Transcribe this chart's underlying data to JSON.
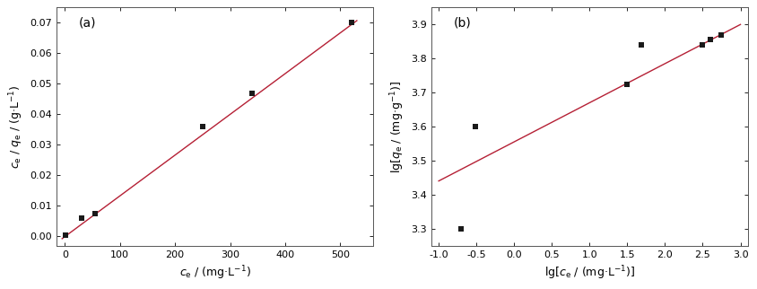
{
  "langmuir": {
    "scatter_x": [
      1.0,
      30.0,
      55.0,
      250.0,
      340.0,
      520.0
    ],
    "scatter_y": [
      0.0005,
      0.006,
      0.0075,
      0.036,
      0.047,
      0.07
    ],
    "fit_x": [
      -5,
      530
    ],
    "fit_slope": 0.0001335,
    "fit_intercept": -5e-05,
    "xlabel": "$c_{\\rm e}$ / (mg·L$^{-1}$)",
    "ylabel": "$c_{\\rm e}$ / $q_{\\rm e}$ / (g·L$^{-1}$)",
    "xlim": [
      -15,
      560
    ],
    "ylim": [
      -0.003,
      0.075
    ],
    "xticks": [
      0,
      100,
      200,
      300,
      400,
      500
    ],
    "yticks": [
      0.0,
      0.01,
      0.02,
      0.03,
      0.04,
      0.05,
      0.06,
      0.07
    ],
    "label": "(a)"
  },
  "freundlich": {
    "scatter_x": [
      -0.7,
      -0.52,
      1.5,
      1.68,
      2.49,
      2.6,
      2.74
    ],
    "scatter_y": [
      3.3,
      3.6,
      3.725,
      3.84,
      3.84,
      3.855,
      3.87
    ],
    "fit_x": [
      -1.0,
      3.0
    ],
    "fit_slope": 0.115,
    "fit_intercept": 3.555,
    "xlabel": "lg[$c_{\\rm e}$ / (mg·L$^{-1}$)]",
    "ylabel": "lg[$q_{\\rm e}$ / (mg·g$^{-1}$)]",
    "xlim": [
      -1.1,
      3.1
    ],
    "ylim": [
      3.25,
      3.95
    ],
    "xticks": [
      -1.0,
      -0.5,
      0.0,
      0.5,
      1.0,
      1.5,
      2.0,
      2.5,
      3.0
    ],
    "yticks": [
      3.3,
      3.4,
      3.5,
      3.6,
      3.7,
      3.8,
      3.9
    ],
    "label": "(b)"
  },
  "scatter_color": "#1a1a1a",
  "line_color": "#b52035",
  "marker": "s",
  "marker_size": 5,
  "line_width": 1.0,
  "bg_color": "#ffffff",
  "font_size": 9,
  "spine_color": "#555555"
}
